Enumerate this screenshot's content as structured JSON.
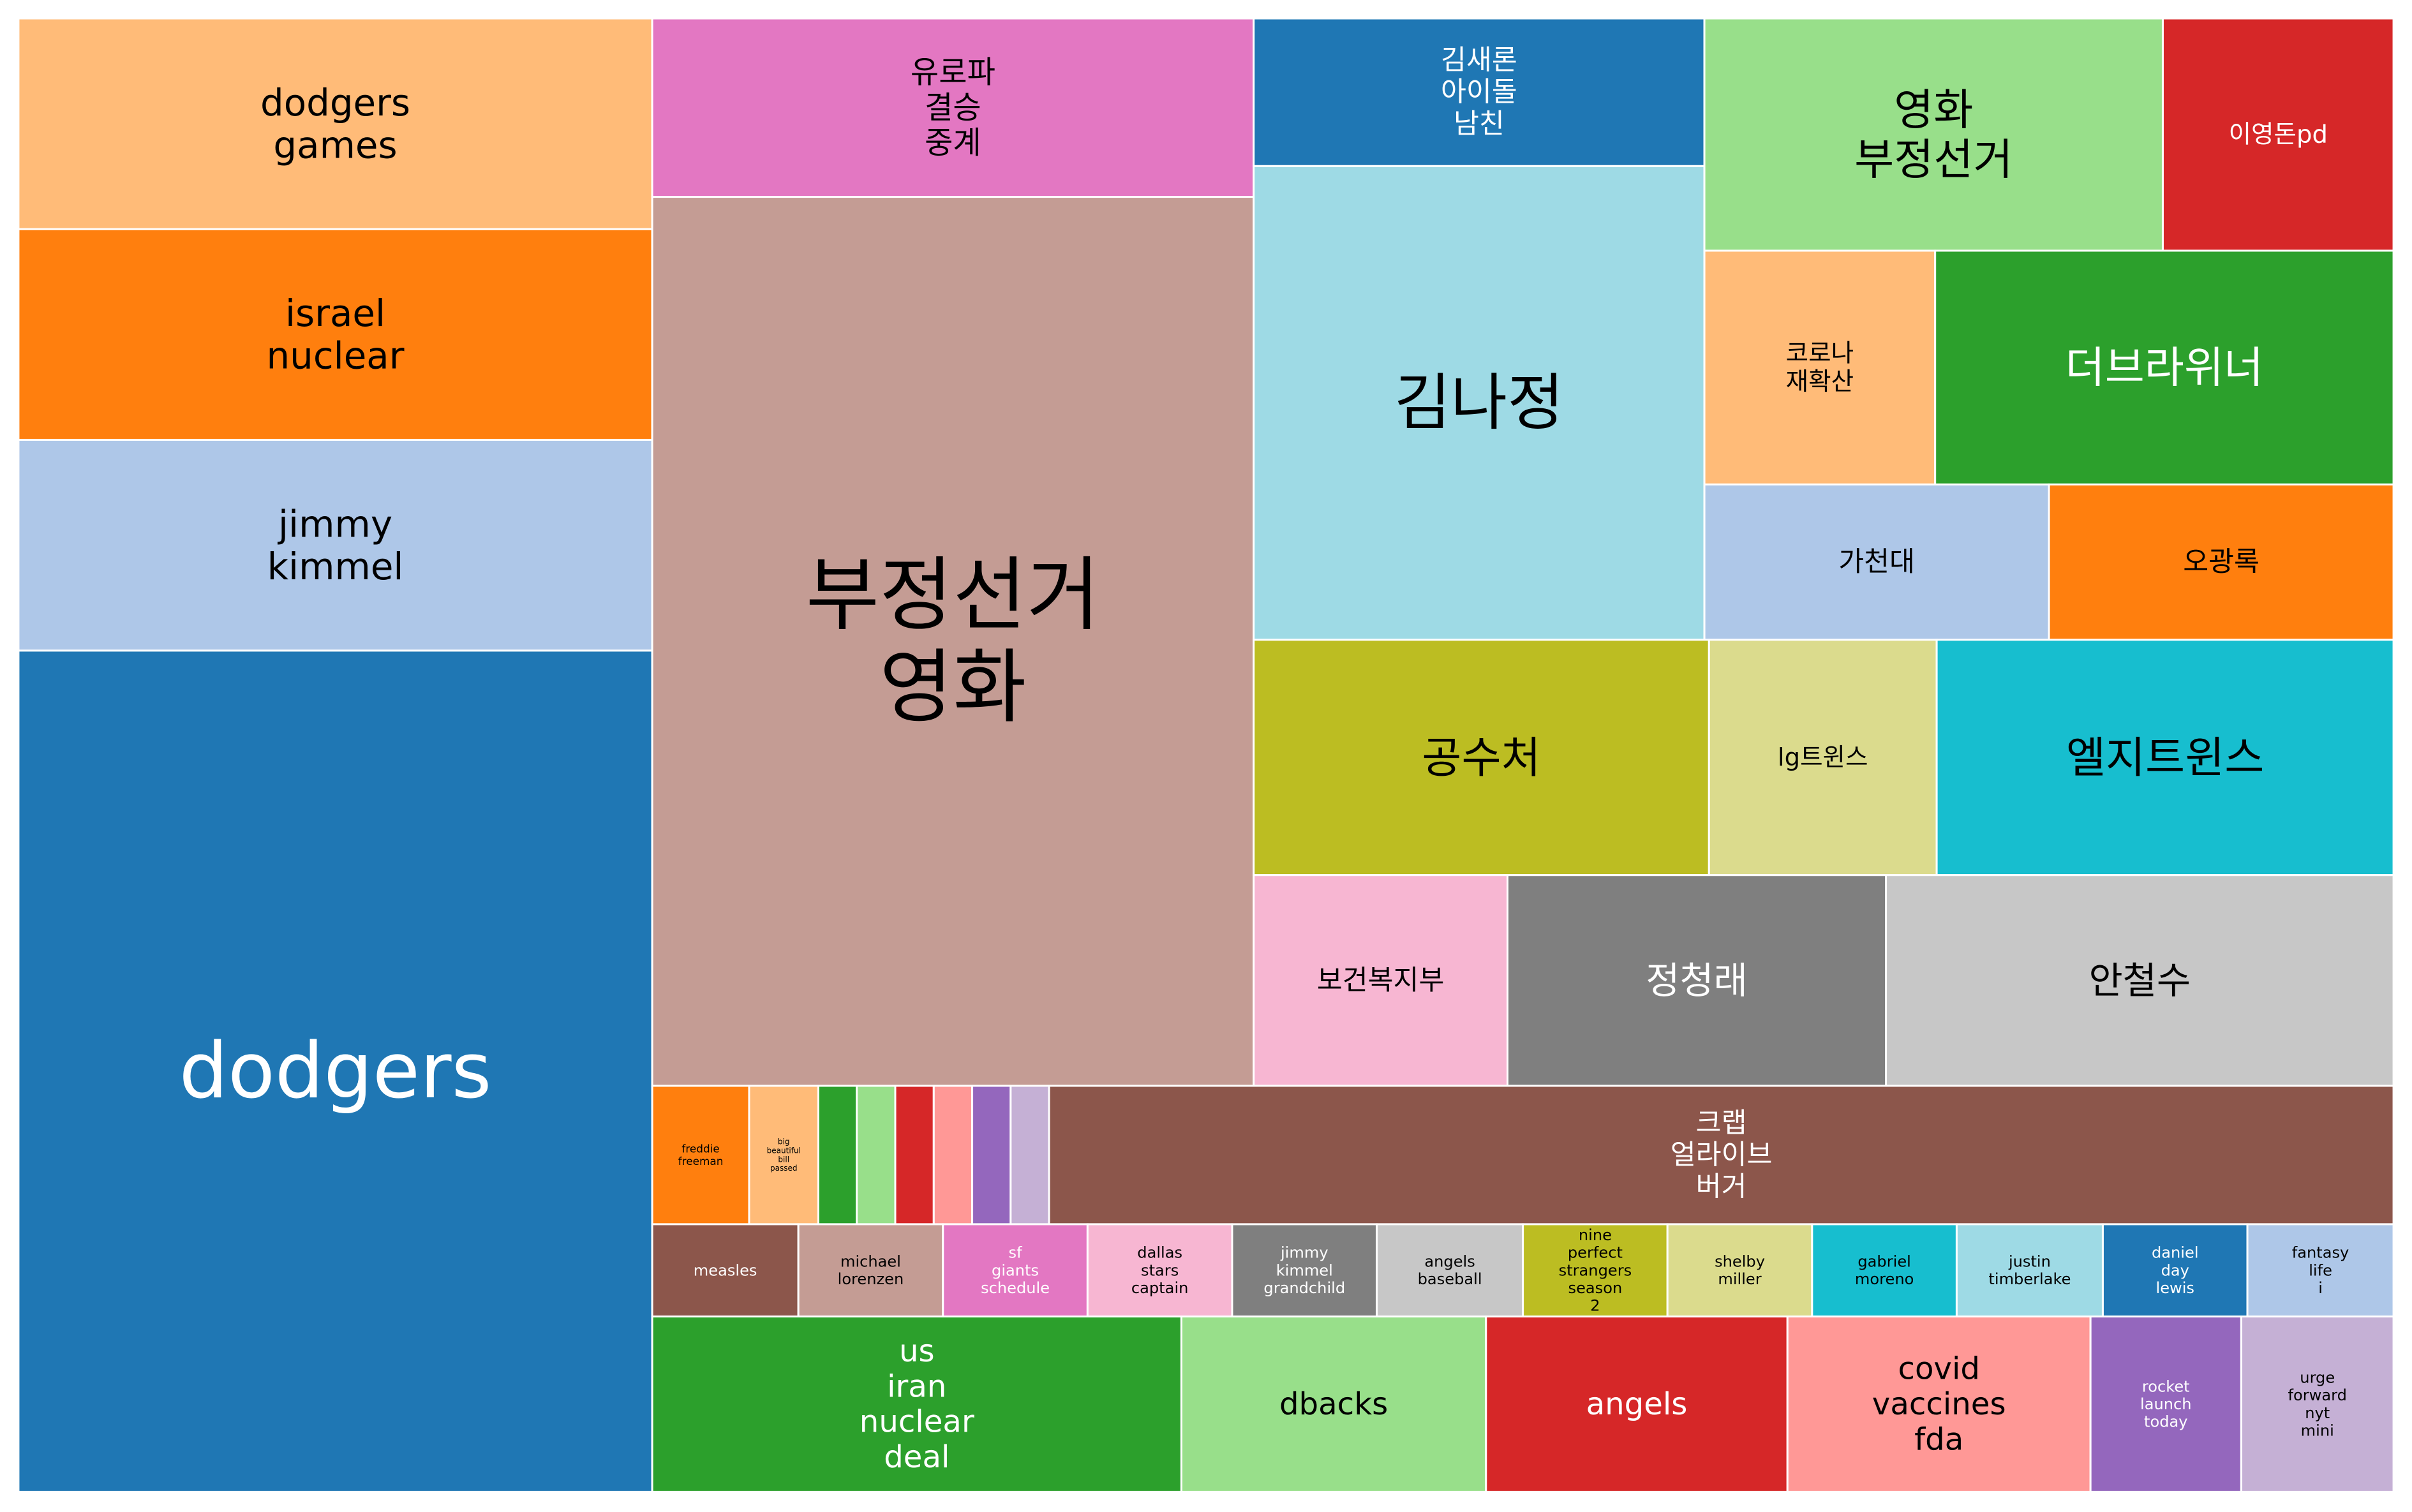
{
  "chart_data": {
    "type": "treemap",
    "title": "",
    "cells": [
      {
        "label": "dodgers",
        "lines": [
          "dodgers"
        ],
        "color": "#1f77b4"
      },
      {
        "label": "dodgers games",
        "lines": [
          "dodgers",
          "games"
        ],
        "color": "#ffbb78"
      },
      {
        "label": "israel nuclear",
        "lines": [
          "israel",
          "nuclear"
        ],
        "color": "#ff7f0e"
      },
      {
        "label": "jimmy kimmel",
        "lines": [
          "jimmy",
          "kimmel"
        ],
        "color": "#aec7e8"
      },
      {
        "label": "유로파 결승 중계",
        "lines": [
          "유로파",
          "결승",
          "중계"
        ],
        "color": "#e377c2"
      },
      {
        "label": "부정선거 영화",
        "lines": [
          "부정선거",
          "영화"
        ],
        "color": "#c49c94"
      },
      {
        "label": "김새론 아이돌 남친",
        "lines": [
          "김새론",
          "아이돌",
          "남친"
        ],
        "color": "#1f77b4"
      },
      {
        "label": "김나정",
        "lines": [
          "김나정"
        ],
        "color": "#9edae5"
      },
      {
        "label": "영화 부정선거",
        "lines": [
          "영화",
          "부정선거"
        ],
        "color": "#98df8a"
      },
      {
        "label": "이영돈pd",
        "lines": [
          "이영돈pd"
        ],
        "color": "#d62728"
      },
      {
        "label": "코로나 재확산",
        "lines": [
          "코로나",
          "재확산"
        ],
        "color": "#ffbb78"
      },
      {
        "label": "더브라위너",
        "lines": [
          "더브라위너"
        ],
        "color": "#2ca02c"
      },
      {
        "label": "가천대",
        "lines": [
          "가천대"
        ],
        "color": "#aec7e8"
      },
      {
        "label": "오광록",
        "lines": [
          "오광록"
        ],
        "color": "#ff7f0e"
      },
      {
        "label": "공수처",
        "lines": [
          "공수처"
        ],
        "color": "#bcbd22"
      },
      {
        "label": "lg트윈스",
        "lines": [
          "lg트윈스"
        ],
        "color": "#dbdb8d"
      },
      {
        "label": "엘지트윈스",
        "lines": [
          "엘지트윈스"
        ],
        "color": "#17becf"
      },
      {
        "label": "보건복지부",
        "lines": [
          "보건복지부"
        ],
        "color": "#f7b6d2"
      },
      {
        "label": "정청래",
        "lines": [
          "정청래"
        ],
        "color": "#7f7f7f"
      },
      {
        "label": "안철수",
        "lines": [
          "안철수"
        ],
        "color": "#c7c7c7"
      },
      {
        "label": "freddie freeman",
        "lines": [
          "freddie",
          "freeman"
        ],
        "color": "#ff7f0e"
      },
      {
        "label": "big beautiful bill passed",
        "lines": [
          "big",
          "beautiful",
          "bill",
          "passed"
        ],
        "color": "#ffbb78"
      },
      {
        "label": "",
        "lines": [],
        "color": "#2ca02c"
      },
      {
        "label": "",
        "lines": [],
        "color": "#98df8a"
      },
      {
        "label": "",
        "lines": [],
        "color": "#d62728"
      },
      {
        "label": "",
        "lines": [],
        "color": "#ff9896"
      },
      {
        "label": "",
        "lines": [],
        "color": "#9467bd"
      },
      {
        "label": "",
        "lines": [],
        "color": "#c5b0d5"
      },
      {
        "label": "크랩 얼라이브 버거",
        "lines": [
          "크랩",
          "얼라이브",
          "버거"
        ],
        "color": "#8c564b"
      },
      {
        "label": "measles",
        "lines": [
          "measles"
        ],
        "color": "#8c564b"
      },
      {
        "label": "michael lorenzen",
        "lines": [
          "michael",
          "lorenzen"
        ],
        "color": "#c49c94"
      },
      {
        "label": "sf giants schedule",
        "lines": [
          "sf",
          "giants",
          "schedule"
        ],
        "color": "#e377c2"
      },
      {
        "label": "dallas stars captain",
        "lines": [
          "dallas",
          "stars",
          "captain"
        ],
        "color": "#f7b6d2"
      },
      {
        "label": "jimmy kimmel grandchild",
        "lines": [
          "jimmy",
          "kimmel",
          "grandchild"
        ],
        "color": "#7f7f7f"
      },
      {
        "label": "angels baseball",
        "lines": [
          "angels",
          "baseball"
        ],
        "color": "#c7c7c7"
      },
      {
        "label": "nine perfect strangers season 2",
        "lines": [
          "nine",
          "perfect",
          "strangers",
          "season",
          "2"
        ],
        "color": "#bcbd22"
      },
      {
        "label": "shelby miller",
        "lines": [
          "shelby",
          "miller"
        ],
        "color": "#dbdb8d"
      },
      {
        "label": "gabriel moreno",
        "lines": [
          "gabriel",
          "moreno"
        ],
        "color": "#17becf"
      },
      {
        "label": "justin timberlake",
        "lines": [
          "justin",
          "timberlake"
        ],
        "color": "#9edae5"
      },
      {
        "label": "daniel day lewis",
        "lines": [
          "daniel",
          "day",
          "lewis"
        ],
        "color": "#1f77b4"
      },
      {
        "label": "fantasy life i",
        "lines": [
          "fantasy",
          "life",
          "i"
        ],
        "color": "#aec7e8"
      },
      {
        "label": "us iran nuclear deal",
        "lines": [
          "us",
          "iran",
          "nuclear",
          "deal"
        ],
        "color": "#2ca02c"
      },
      {
        "label": "dbacks",
        "lines": [
          "dbacks"
        ],
        "color": "#98df8a"
      },
      {
        "label": "angels",
        "lines": [
          "angels"
        ],
        "color": "#d62728"
      },
      {
        "label": "covid vaccines fda",
        "lines": [
          "covid",
          "vaccines",
          "fda"
        ],
        "color": "#ff9896"
      },
      {
        "label": "rocket launch today",
        "lines": [
          "rocket",
          "launch",
          "today"
        ],
        "color": "#9467bd"
      },
      {
        "label": "urge forward nyt mini",
        "lines": [
          "urge",
          "forward",
          "nyt",
          "mini"
        ],
        "color": "#c5b0d5"
      }
    ]
  }
}
